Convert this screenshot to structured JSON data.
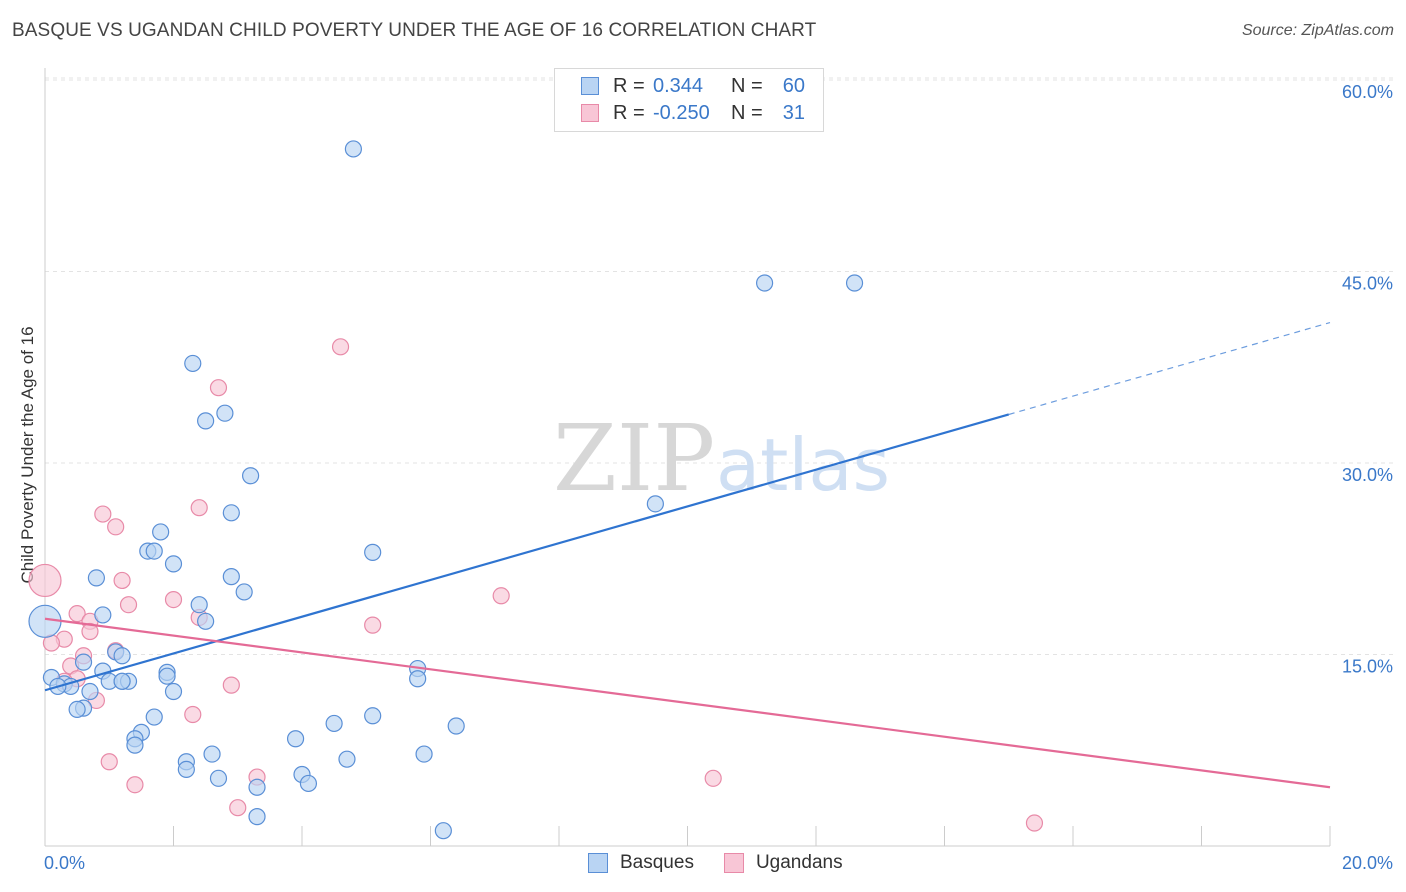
{
  "chart_data": {
    "type": "scatter",
    "title": "BASQUE VS UGANDAN CHILD POVERTY UNDER THE AGE OF 16 CORRELATION CHART",
    "source": "Source: ZipAtlas.com",
    "ylabel": "Child Poverty Under the Age of 16",
    "xlim": [
      0,
      20
    ],
    "ylim": [
      0,
      60
    ],
    "x_ticks": [
      "0.0%",
      "20.0%"
    ],
    "y_ticks": [
      {
        "value": 15,
        "label": "15.0%"
      },
      {
        "value": 30,
        "label": "30.0%"
      },
      {
        "value": 45,
        "label": "45.0%"
      },
      {
        "value": 60,
        "label": "60.0%"
      }
    ],
    "grid": true,
    "legend_position": "top-center",
    "watermark": {
      "zip": "ZIP",
      "atlas": "atlas"
    },
    "colors": {
      "basques_fill": "#b9d4f3",
      "basques_stroke": "#5a8fd6",
      "basques_line": "#2f74d0",
      "ugandans_fill": "#f8c6d6",
      "ugandans_stroke": "#e88aa8",
      "ugandans_line": "#e46a96",
      "axis_text": "#3a78c9"
    },
    "stats": [
      {
        "r_label": "R =",
        "r": "0.344",
        "n_label": "N =",
        "n": "60"
      },
      {
        "r_label": "R =",
        "r": "-0.250",
        "n_label": "N =",
        "n": "31"
      }
    ],
    "series": [
      {
        "name": "Basques",
        "trend": {
          "x0": 0,
          "y0": 12.2,
          "x1": 15.0,
          "y1": 33.8,
          "x_dash_end": 20.0,
          "y_dash_end": 41.0
        },
        "points": [
          [
            4.8,
            54.6
          ],
          [
            11.2,
            44.1
          ],
          [
            12.6,
            44.1
          ],
          [
            2.3,
            37.8
          ],
          [
            2.8,
            33.9
          ],
          [
            2.5,
            33.3
          ],
          [
            3.2,
            29.0
          ],
          [
            9.5,
            26.8
          ],
          [
            2.9,
            26.1
          ],
          [
            1.8,
            24.6
          ],
          [
            1.6,
            23.1
          ],
          [
            1.7,
            23.1
          ],
          [
            5.1,
            23.0
          ],
          [
            2.0,
            22.1
          ],
          [
            0.8,
            21.0
          ],
          [
            2.9,
            21.1
          ],
          [
            3.1,
            19.9
          ],
          [
            2.4,
            18.9
          ],
          [
            0.9,
            18.1
          ],
          [
            2.5,
            17.6
          ],
          [
            0.0,
            17.6
          ],
          [
            1.1,
            15.2
          ],
          [
            1.2,
            14.9
          ],
          [
            0.6,
            14.4
          ],
          [
            5.8,
            13.9
          ],
          [
            0.9,
            13.7
          ],
          [
            1.9,
            13.6
          ],
          [
            1.9,
            13.3
          ],
          [
            0.1,
            13.2
          ],
          [
            5.8,
            13.1
          ],
          [
            1.0,
            12.9
          ],
          [
            1.2,
            12.9
          ],
          [
            1.3,
            12.9
          ],
          [
            1.2,
            12.9
          ],
          [
            0.3,
            12.7
          ],
          [
            0.4,
            12.5
          ],
          [
            0.2,
            12.5
          ],
          [
            0.7,
            12.1
          ],
          [
            2.0,
            12.1
          ],
          [
            0.6,
            10.8
          ],
          [
            0.5,
            10.7
          ],
          [
            1.7,
            10.1
          ],
          [
            5.1,
            10.2
          ],
          [
            4.5,
            9.6
          ],
          [
            6.4,
            9.4
          ],
          [
            1.5,
            8.9
          ],
          [
            1.4,
            8.4
          ],
          [
            3.9,
            8.4
          ],
          [
            1.4,
            7.9
          ],
          [
            2.6,
            7.2
          ],
          [
            5.9,
            7.2
          ],
          [
            2.2,
            6.6
          ],
          [
            4.7,
            6.8
          ],
          [
            2.2,
            6.0
          ],
          [
            4.0,
            5.6
          ],
          [
            2.7,
            5.3
          ],
          [
            4.1,
            4.9
          ],
          [
            3.3,
            4.6
          ],
          [
            3.3,
            2.3
          ],
          [
            6.2,
            1.2
          ]
        ]
      },
      {
        "name": "Ugandans",
        "trend": {
          "x0": 0,
          "y0": 17.8,
          "x1": 20.0,
          "y1": 4.6
        },
        "points": [
          [
            4.6,
            39.1
          ],
          [
            2.7,
            35.9
          ],
          [
            2.4,
            26.5
          ],
          [
            0.9,
            26.0
          ],
          [
            1.1,
            25.0
          ],
          [
            0.0,
            20.8
          ],
          [
            1.2,
            20.8
          ],
          [
            7.1,
            19.6
          ],
          [
            2.0,
            19.3
          ],
          [
            1.3,
            18.9
          ],
          [
            0.5,
            18.2
          ],
          [
            2.4,
            17.9
          ],
          [
            0.7,
            17.6
          ],
          [
            5.1,
            17.3
          ],
          [
            0.7,
            16.8
          ],
          [
            0.3,
            16.2
          ],
          [
            0.1,
            15.9
          ],
          [
            1.1,
            15.3
          ],
          [
            0.6,
            14.9
          ],
          [
            0.4,
            14.1
          ],
          [
            0.5,
            13.1
          ],
          [
            0.3,
            12.9
          ],
          [
            2.9,
            12.6
          ],
          [
            0.8,
            11.4
          ],
          [
            2.3,
            10.3
          ],
          [
            1.0,
            6.6
          ],
          [
            3.3,
            5.4
          ],
          [
            10.4,
            5.3
          ],
          [
            1.4,
            4.8
          ],
          [
            3.0,
            3.0
          ],
          [
            15.4,
            1.8
          ]
        ]
      }
    ]
  }
}
